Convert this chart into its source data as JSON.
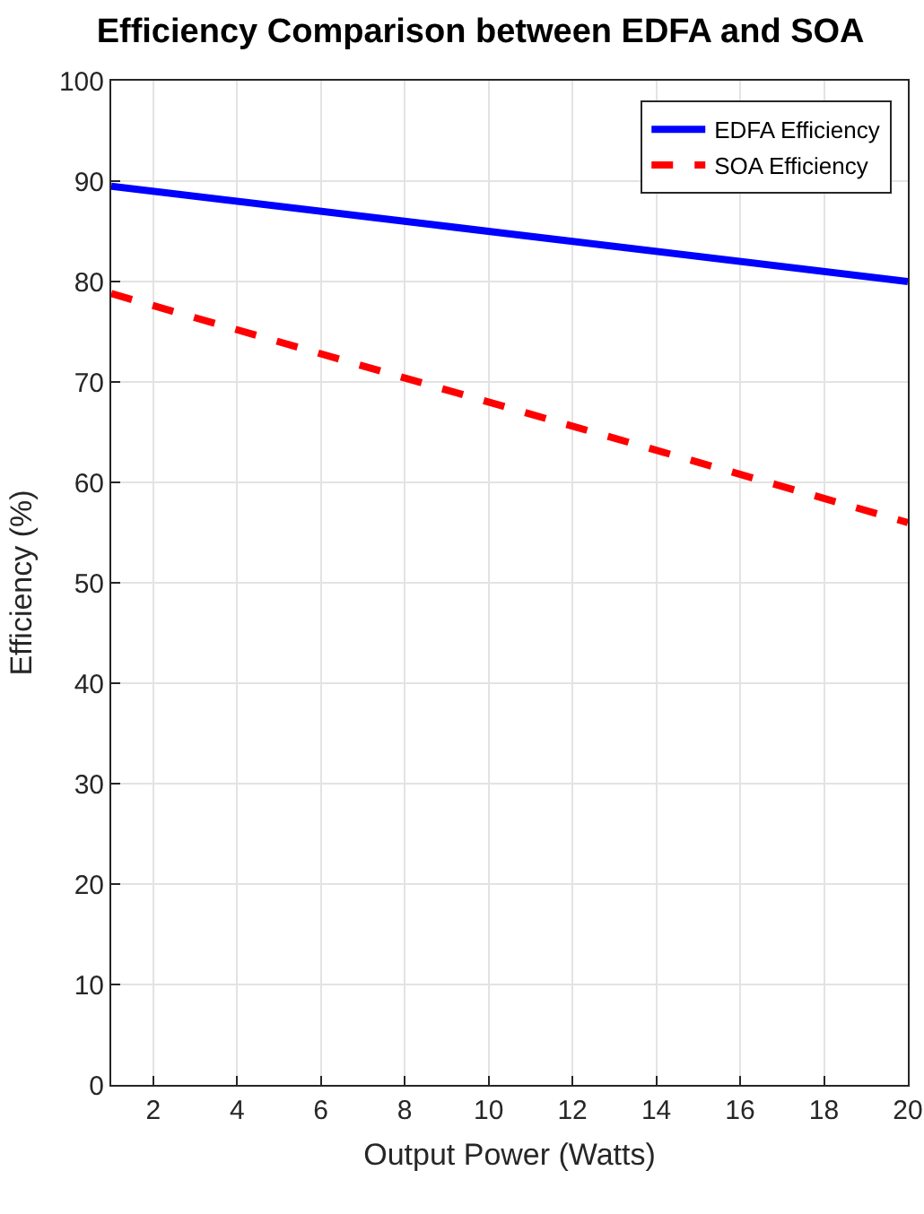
{
  "chart_data": {
    "type": "line",
    "title": "Efficiency Comparison between EDFA and SOA",
    "xlabel": "Output Power (Watts)",
    "ylabel": "Efficiency (%)",
    "x": [
      1,
      20
    ],
    "series": [
      {
        "name": "EDFA Efficiency",
        "color": "#0000ff",
        "values": [
          89.5,
          80
        ],
        "line_style": "solid"
      },
      {
        "name": "SOA Efficiency",
        "color": "#ff0000",
        "values": [
          78.8,
          56
        ],
        "line_style": "dashed"
      }
    ],
    "xlim": [
      1,
      20
    ],
    "xticks": [
      2,
      4,
      6,
      8,
      10,
      12,
      14,
      16,
      18,
      20
    ],
    "ylim": [
      0,
      100
    ],
    "yticks": [
      0,
      10,
      20,
      30,
      40,
      50,
      60,
      70,
      80,
      90,
      100
    ],
    "grid": true,
    "legend": "top right",
    "marker": "none"
  }
}
